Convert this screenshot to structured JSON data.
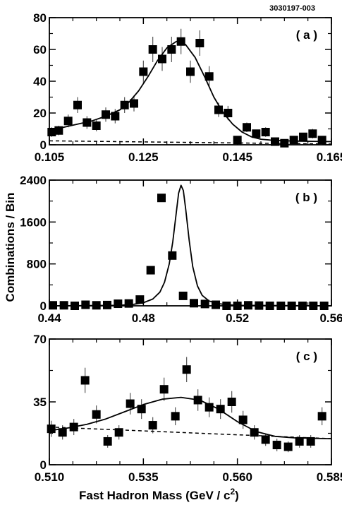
{
  "figure_id": "3030197-003",
  "ylabel": "Combinations / Bin",
  "xlabel_main": "Fast  Hadron  Mass  (GeV / c",
  "xlabel_sup": "2",
  "xlabel_end": ")",
  "chart_data": [
    {
      "type": "scatter",
      "panel_label": "( a )",
      "xlim": [
        0.105,
        0.165
      ],
      "ylim": [
        0,
        80
      ],
      "xticks": [
        0.105,
        0.125,
        0.145,
        0.165
      ],
      "xtick_labels": [
        "0.105",
        "0.125",
        "0.145",
        "0.165"
      ],
      "yticks": [
        0,
        20,
        40,
        60,
        80
      ],
      "ytick_labels": [
        "0",
        "20",
        "40",
        "60",
        "80"
      ],
      "series": [
        {
          "kind": "points",
          "x": [
            0.1055,
            0.107,
            0.109,
            0.111,
            0.113,
            0.115,
            0.117,
            0.119,
            0.121,
            0.123,
            0.125,
            0.127,
            0.129,
            0.131,
            0.133,
            0.135,
            0.137,
            0.139,
            0.141,
            0.143,
            0.145,
            0.147,
            0.149,
            0.151,
            0.153,
            0.155,
            0.157,
            0.159,
            0.161,
            0.163
          ],
          "y": [
            8,
            9,
            15,
            25,
            14,
            12,
            19,
            18,
            25,
            26,
            46,
            60,
            54,
            60,
            65,
            46,
            64,
            43,
            22,
            20,
            3,
            11,
            7,
            8,
            2,
            1,
            3,
            5,
            7,
            3
          ],
          "yerr": [
            3,
            3,
            4,
            5,
            4,
            3.5,
            4.5,
            4.5,
            5,
            5,
            7,
            8,
            7.5,
            8,
            8,
            7,
            8,
            6.5,
            4.5,
            4.5,
            2,
            3,
            2.5,
            3,
            1.5,
            1,
            2,
            2.5,
            3,
            2
          ]
        },
        {
          "kind": "fit",
          "line": "solid",
          "x": [
            0.105,
            0.108,
            0.111,
            0.114,
            0.117,
            0.12,
            0.122,
            0.124,
            0.126,
            0.128,
            0.13,
            0.132,
            0.133,
            0.134,
            0.136,
            0.138,
            0.14,
            0.142,
            0.144,
            0.146,
            0.148,
            0.15,
            0.152,
            0.155,
            0.158,
            0.161,
            0.165
          ],
          "y": [
            9,
            11,
            13,
            15,
            18,
            22,
            27,
            34,
            43,
            53,
            61,
            65,
            65,
            63,
            55,
            43,
            30,
            20,
            13,
            8,
            5,
            3.5,
            3,
            2.5,
            2.3,
            2.2,
            2
          ]
        },
        {
          "kind": "background",
          "line": "dashed",
          "x": [
            0.105,
            0.165
          ],
          "y": [
            2.5,
            0.5
          ]
        }
      ]
    },
    {
      "type": "scatter",
      "panel_label": "( b )",
      "xlim": [
        0.44,
        0.56
      ],
      "ylim": [
        0,
        2400
      ],
      "xticks": [
        0.44,
        0.48,
        0.52,
        0.56
      ],
      "xtick_labels": [
        "0.44",
        "0.48",
        "0.52",
        "0.56"
      ],
      "yticks": [
        0,
        800,
        1600,
        2400
      ],
      "ytick_labels": [
        "0",
        "800",
        "1600",
        "2400"
      ],
      "series": [
        {
          "kind": "points",
          "x": [
            0.4415,
            0.4462,
            0.4508,
            0.4554,
            0.46,
            0.4646,
            0.4692,
            0.4738,
            0.4785,
            0.4831,
            0.4877,
            0.4923,
            0.4969,
            0.5015,
            0.5062,
            0.5108,
            0.5154,
            0.52,
            0.5246,
            0.5292,
            0.5338,
            0.5385,
            0.5431,
            0.5477,
            0.5523,
            0.5569
          ],
          "y": [
            10,
            10,
            0,
            20,
            10,
            15,
            40,
            45,
            120,
            680,
            2060,
            960,
            190,
            50,
            35,
            20,
            0,
            0,
            10,
            5,
            0,
            -5,
            0,
            -10,
            -5,
            -10
          ],
          "yerr": [
            15,
            15,
            15,
            15,
            15,
            15,
            20,
            20,
            25,
            40,
            60,
            45,
            25,
            15,
            15,
            15,
            15,
            15,
            15,
            15,
            15,
            15,
            15,
            15,
            15,
            15
          ]
        },
        {
          "kind": "fit",
          "line": "solid",
          "x": [
            0.44,
            0.47,
            0.476,
            0.48,
            0.484,
            0.487,
            0.489,
            0.491,
            0.4925,
            0.494,
            0.495,
            0.496,
            0.497,
            0.498,
            0.4995,
            0.501,
            0.503,
            0.505,
            0.508,
            0.512,
            0.516,
            0.52,
            0.56
          ],
          "y": [
            0,
            10,
            30,
            60,
            130,
            260,
            450,
            800,
            1220,
            1780,
            2150,
            2300,
            2200,
            1850,
            1250,
            750,
            380,
            200,
            90,
            40,
            20,
            10,
            0
          ]
        }
      ]
    },
    {
      "type": "scatter",
      "panel_label": "( c )",
      "xlim": [
        0.51,
        0.585
      ],
      "ylim": [
        0,
        70
      ],
      "xticks": [
        0.51,
        0.535,
        0.56,
        0.585
      ],
      "xtick_labels": [
        "0.510",
        "0.535",
        "0.560",
        "0.585"
      ],
      "yticks": [
        0,
        35,
        70
      ],
      "ytick_labels": [
        "0",
        "35",
        "70"
      ],
      "series": [
        {
          "kind": "points",
          "x": [
            0.5105,
            0.5135,
            0.5165,
            0.5195,
            0.5225,
            0.5255,
            0.5285,
            0.5315,
            0.5345,
            0.5375,
            0.5405,
            0.5435,
            0.5465,
            0.5495,
            0.5525,
            0.5555,
            0.5585,
            0.5615,
            0.5645,
            0.5675,
            0.5705,
            0.5735,
            0.5765,
            0.5795,
            0.5825
          ],
          "y": [
            20,
            18,
            21,
            47,
            28,
            13,
            18,
            34,
            31,
            22,
            42,
            27,
            53,
            36,
            32,
            31,
            35,
            25,
            18,
            14,
            11,
            10,
            13,
            13,
            27
          ],
          "yerr": [
            4.5,
            4,
            4.5,
            7,
            5,
            3.5,
            4,
            6,
            5.5,
            4.5,
            6.5,
            5,
            7,
            6,
            5.5,
            5.5,
            6,
            5,
            4,
            3.5,
            3.5,
            3,
            3.5,
            3.5,
            5
          ]
        },
        {
          "kind": "fit",
          "line": "solid",
          "x": [
            0.51,
            0.515,
            0.52,
            0.525,
            0.53,
            0.535,
            0.54,
            0.545,
            0.55,
            0.555,
            0.56,
            0.565,
            0.57,
            0.575,
            0.58,
            0.585
          ],
          "y": [
            19,
            20.5,
            22.5,
            25.5,
            29.5,
            33.5,
            36.5,
            37.5,
            36,
            31,
            24,
            18.5,
            15.8,
            15,
            14.7,
            14.5
          ]
        },
        {
          "kind": "background",
          "line": "dashed",
          "x": [
            0.51,
            0.585
          ],
          "y": [
            21,
            14.5
          ]
        }
      ]
    }
  ]
}
